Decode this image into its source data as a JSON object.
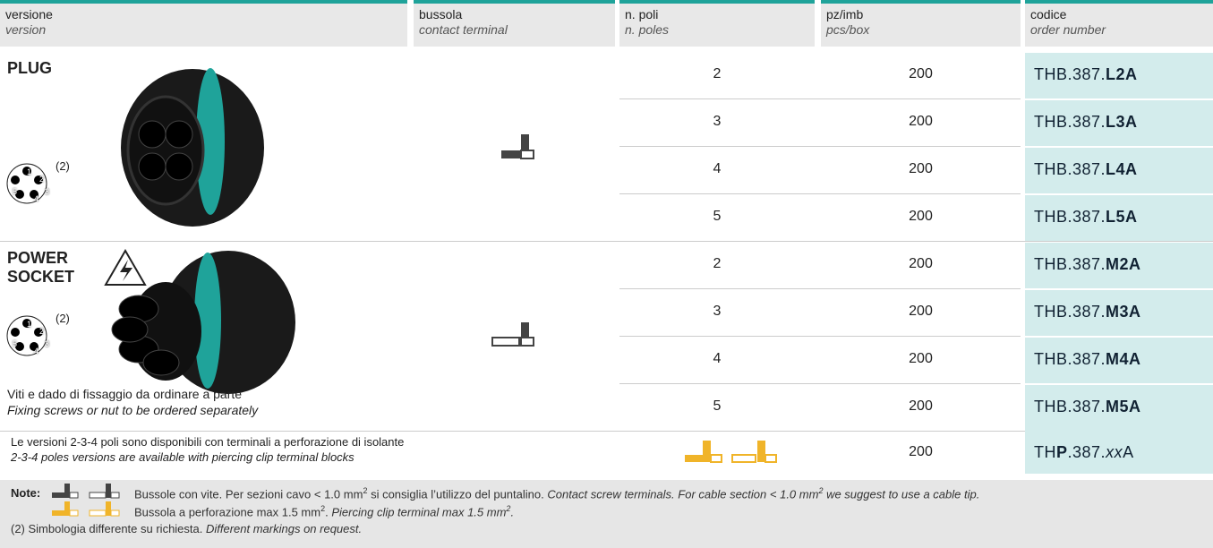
{
  "header": [
    {
      "label": "versione",
      "sub": "version"
    },
    {
      "label": "bussola",
      "sub": "contact terminal"
    },
    {
      "label": "n. poli",
      "sub": "n. poles"
    },
    {
      "label": "pz/imb",
      "sub": "pcs/box"
    },
    {
      "label": "codice",
      "sub": "order number"
    }
  ],
  "sections": [
    {
      "title": "PLUG",
      "pin_note": "(2)",
      "pins": [
        "1",
        "2",
        "3",
        "4",
        "5"
      ],
      "rows": [
        {
          "poles": 2,
          "pcs": 200,
          "code": [
            {
              "text": "THB.387."
            },
            {
              "text": "L2A",
              "bold": true
            }
          ]
        },
        {
          "poles": 3,
          "pcs": 200,
          "code": [
            {
              "text": "THB.387."
            },
            {
              "text": "L3A",
              "bold": true
            }
          ]
        },
        {
          "poles": 4,
          "pcs": 200,
          "code": [
            {
              "text": "THB.387."
            },
            {
              "text": "L4A",
              "bold": true
            }
          ]
        },
        {
          "poles": 5,
          "pcs": 200,
          "code": [
            {
              "text": "THB.387."
            },
            {
              "text": "L5A",
              "bold": true
            }
          ]
        }
      ]
    },
    {
      "title": "POWER SOCKET",
      "pin_note": "(2)",
      "pins": [
        "1",
        "2",
        "3",
        "4",
        "5"
      ],
      "footnote": "Viti e dado di fissaggio da ordinare a parte",
      "footnote_en": "Fixing screws or nut to be ordered separately",
      "rows": [
        {
          "poles": 2,
          "pcs": 200,
          "code": [
            {
              "text": "THB.387."
            },
            {
              "text": "M2A",
              "bold": true
            }
          ]
        },
        {
          "poles": 3,
          "pcs": 200,
          "code": [
            {
              "text": "THB.387."
            },
            {
              "text": "M3A",
              "bold": true
            }
          ]
        },
        {
          "poles": 4,
          "pcs": 200,
          "code": [
            {
              "text": "THB.387."
            },
            {
              "text": "M4A",
              "bold": true
            }
          ]
        },
        {
          "poles": 5,
          "pcs": 200,
          "code": [
            {
              "text": "THB.387."
            },
            {
              "text": "M5A",
              "bold": true
            }
          ]
        }
      ]
    }
  ],
  "piercing": {
    "text": "Le versioni 2-3-4 poli sono disponibili con terminali a perforazione di isolante",
    "text_en": "2-3-4 poles versions are available with piercing clip terminal blocks",
    "pcs": 200,
    "code": [
      {
        "text": "TH"
      },
      {
        "text": "P",
        "bold": true
      },
      {
        "text": ".387."
      },
      {
        "text": "xx",
        "italic": true
      },
      {
        "text": "A"
      }
    ]
  },
  "notes": {
    "label": "Note:",
    "lines": [
      [
        {
          "text": "Bussole con vite. Per sezioni cavo < 1.0 mm"
        },
        {
          "text": "2",
          "sup": true
        },
        {
          "text": " si consiglia l’utilizzo del puntalino. "
        },
        {
          "text": "Contact screw terminals. For cable section < 1.0 mm",
          "italic": true
        },
        {
          "text": "2",
          "sup": true,
          "italic": true
        },
        {
          "text": " we suggest to use a cable tip.",
          "italic": true
        }
      ],
      [
        {
          "text": "Bussola a perforazione max 1.5 mm"
        },
        {
          "text": "2",
          "sup": true
        },
        {
          "text": ". "
        },
        {
          "text": "Piercing clip terminal max 1.5 mm",
          "italic": true
        },
        {
          "text": "2",
          "sup": true,
          "italic": true
        },
        {
          "text": ".",
          "italic": true
        }
      ],
      [
        {
          "text": "(2) Simbologia differente su richiesta. "
        },
        {
          "text": "Different markings on request.",
          "italic": true
        }
      ]
    ]
  }
}
